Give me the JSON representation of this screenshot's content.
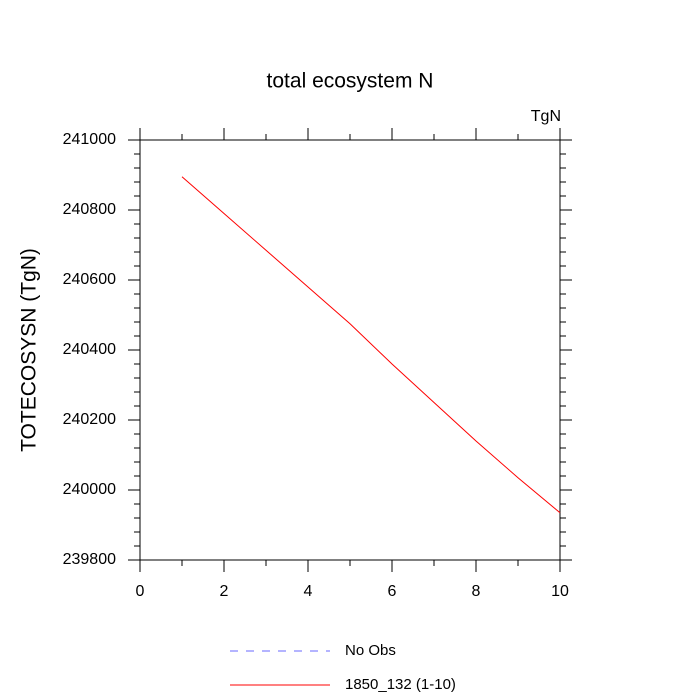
{
  "chart_data": {
    "type": "line",
    "title": "total ecosystem N",
    "units_label": "TgN",
    "y_label": "TOTECOSYSN  (TgN)",
    "x": [
      1,
      2,
      3,
      4,
      5,
      6,
      7,
      8,
      9,
      10
    ],
    "series": [
      {
        "name": "No Obs",
        "color": "#6a6aff",
        "dashed": true,
        "values": [
          null,
          null,
          null,
          null,
          null,
          null,
          null,
          null,
          null,
          null
        ]
      },
      {
        "name": "1850_132 (1-10)",
        "color": "#ff0000",
        "dashed": false,
        "values": [
          240895,
          240790,
          240685,
          240580,
          240475,
          240360,
          240250,
          240140,
          240035,
          239935
        ]
      }
    ],
    "xlim": [
      0,
      10
    ],
    "xticks": [
      0,
      2,
      4,
      6,
      8,
      10
    ],
    "xminorticks": [
      1,
      3,
      5,
      7,
      9
    ],
    "ylim": [
      239800,
      241000
    ],
    "yticks": [
      239800,
      240000,
      240200,
      240400,
      240600,
      240800,
      241000
    ],
    "yminorticks": [
      239840,
      239880,
      239920,
      239960,
      240040,
      240080,
      240120,
      240160,
      240240,
      240280,
      240320,
      240360,
      240440,
      240480,
      240520,
      240560,
      240640,
      240680,
      240720,
      240760,
      240840,
      240880,
      240920,
      240960
    ],
    "grid": false
  }
}
